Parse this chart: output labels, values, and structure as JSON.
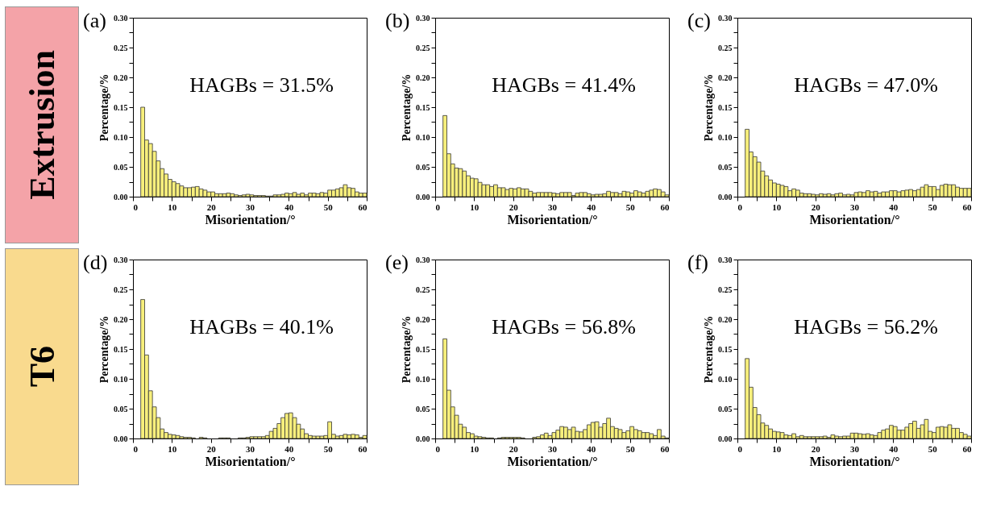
{
  "chart_data": [
    {
      "type": "other",
      "title": "Extrusion",
      "color": "#f4a3a8"
    },
    {
      "type": "histogram",
      "title": "(a)",
      "xlabel": "Misorientation/°",
      "ylabel": "Percentage/%",
      "annotations": [
        "HAGBs = 31.5%"
      ],
      "color": "#f7ef7c",
      "bins": [
        2,
        3,
        4,
        5,
        6,
        7,
        8,
        9,
        10,
        11,
        12,
        13,
        14,
        15,
        16,
        17,
        18,
        19,
        20,
        21,
        22,
        23,
        24,
        25,
        26,
        27,
        28,
        29,
        30,
        31,
        32,
        33,
        34,
        35,
        36,
        37,
        38,
        39,
        40,
        41,
        42,
        43,
        44,
        45,
        46,
        47,
        48,
        49,
        50,
        51,
        52,
        53,
        54,
        55,
        56,
        57,
        58,
        59,
        60
      ],
      "values": [
        0.15,
        0.095,
        0.089,
        0.076,
        0.06,
        0.047,
        0.038,
        0.029,
        0.025,
        0.022,
        0.018,
        0.015,
        0.015,
        0.016,
        0.017,
        0.013,
        0.011,
        0.008,
        0.008,
        0.005,
        0.005,
        0.005,
        0.006,
        0.005,
        0.003,
        0.002,
        0.003,
        0.004,
        0.003,
        0.002,
        0.002,
        0.002,
        0.001,
        0.001,
        0.003,
        0.003,
        0.004,
        0.006,
        0.005,
        0.007,
        0.004,
        0.006,
        0.003,
        0.006,
        0.006,
        0.005,
        0.007,
        0.006,
        0.011,
        0.011,
        0.013,
        0.015,
        0.02,
        0.015,
        0.014,
        0.008,
        0.006,
        0.006
      ],
      "xlim": [
        0,
        60
      ],
      "xticks": [
        0,
        {
          "value": 5,
          "label": null
        },
        10,
        {
          "value": 15,
          "label": null
        },
        20,
        {
          "value": 25,
          "label": null
        },
        30,
        {
          "value": 35,
          "label": null
        },
        40,
        {
          "value": 45,
          "label": null
        },
        50,
        {
          "value": 55,
          "label": null
        },
        60
      ],
      "ylim": [
        0,
        0.3
      ],
      "yticks": [
        {
          "value": 0,
          "label": "0.00"
        },
        {
          "value": 0.025,
          "label": null
        },
        {
          "value": 0.05,
          "label": "0.05"
        },
        {
          "value": 0.075,
          "label": null
        },
        {
          "value": 0.1,
          "label": "0.10"
        },
        {
          "value": 0.125,
          "label": null
        },
        {
          "value": 0.15,
          "label": "0.15"
        },
        {
          "value": 0.175,
          "label": null
        },
        {
          "value": 0.2,
          "label": "0.20"
        },
        {
          "value": 0.225,
          "label": null
        },
        {
          "value": 0.25,
          "label": "0.25"
        },
        {
          "value": 0.275,
          "label": null
        },
        {
          "value": 0.3,
          "label": "0.30"
        }
      ]
    },
    {
      "type": "histogram",
      "title": "(b)",
      "xlabel": "Misorientation/°",
      "ylabel": "Percentage/%",
      "annotations": [
        "HAGBs = 41.4%"
      ],
      "color": "#f7ef7c",
      "bins": [
        2,
        3,
        4,
        5,
        6,
        7,
        8,
        9,
        10,
        11,
        12,
        13,
        14,
        15,
        16,
        17,
        18,
        19,
        20,
        21,
        22,
        23,
        24,
        25,
        26,
        27,
        28,
        29,
        30,
        31,
        32,
        33,
        34,
        35,
        36,
        37,
        38,
        39,
        40,
        41,
        42,
        43,
        44,
        45,
        46,
        47,
        48,
        49,
        50,
        51,
        52,
        53,
        54,
        55,
        56,
        57,
        58,
        59,
        60
      ],
      "values": [
        0.136,
        0.072,
        0.055,
        0.048,
        0.047,
        0.043,
        0.035,
        0.031,
        0.03,
        0.024,
        0.02,
        0.02,
        0.017,
        0.02,
        0.015,
        0.015,
        0.012,
        0.014,
        0.013,
        0.015,
        0.013,
        0.013,
        0.009,
        0.006,
        0.007,
        0.007,
        0.007,
        0.007,
        0.006,
        0.005,
        0.007,
        0.007,
        0.007,
        0.002,
        0.006,
        0.007,
        0.007,
        0.005,
        0.003,
        0.004,
        0.004,
        0.005,
        0.009,
        0.007,
        0.007,
        0.005,
        0.009,
        0.008,
        0.006,
        0.01,
        0.008,
        0.006,
        0.009,
        0.011,
        0.013,
        0.012,
        0.008,
        0.003
      ],
      "xlim": [
        0,
        60
      ],
      "xticks": [
        0,
        {
          "value": 5,
          "label": null
        },
        10,
        {
          "value": 15,
          "label": null
        },
        20,
        {
          "value": 25,
          "label": null
        },
        30,
        {
          "value": 35,
          "label": null
        },
        40,
        {
          "value": 45,
          "label": null
        },
        50,
        {
          "value": 55,
          "label": null
        },
        60
      ],
      "ylim": [
        0,
        0.3
      ],
      "yticks": [
        {
          "value": 0,
          "label": "0.00"
        },
        {
          "value": 0.025,
          "label": null
        },
        {
          "value": 0.05,
          "label": "0.05"
        },
        {
          "value": 0.075,
          "label": null
        },
        {
          "value": 0.1,
          "label": "0.10"
        },
        {
          "value": 0.125,
          "label": null
        },
        {
          "value": 0.15,
          "label": "0.15"
        },
        {
          "value": 0.175,
          "label": null
        },
        {
          "value": 0.2,
          "label": "0.20"
        },
        {
          "value": 0.225,
          "label": null
        },
        {
          "value": 0.25,
          "label": "0.25"
        },
        {
          "value": 0.275,
          "label": null
        },
        {
          "value": 0.3,
          "label": "0.30"
        }
      ]
    },
    {
      "type": "histogram",
      "title": "(c)",
      "xlabel": "Misorientation/°",
      "ylabel": "Percentage/%",
      "annotations": [
        "HAGBs = 47.0%"
      ],
      "color": "#f7ef7c",
      "bins": [
        2,
        3,
        4,
        5,
        6,
        7,
        8,
        9,
        10,
        11,
        12,
        13,
        14,
        15,
        16,
        17,
        18,
        19,
        20,
        21,
        22,
        23,
        24,
        25,
        26,
        27,
        28,
        29,
        30,
        31,
        32,
        33,
        34,
        35,
        36,
        37,
        38,
        39,
        40,
        41,
        42,
        43,
        44,
        45,
        46,
        47,
        48,
        49,
        50,
        51,
        52,
        53,
        54,
        55,
        56,
        57,
        58,
        59,
        60
      ],
      "values": [
        0.113,
        0.075,
        0.067,
        0.058,
        0.043,
        0.035,
        0.028,
        0.023,
        0.021,
        0.019,
        0.017,
        0.01,
        0.013,
        0.011,
        0.006,
        0.005,
        0.005,
        0.004,
        0.003,
        0.005,
        0.004,
        0.005,
        0.003,
        0.005,
        0.006,
        0.003,
        0.004,
        0.003,
        0.007,
        0.008,
        0.007,
        0.01,
        0.008,
        0.009,
        0.006,
        0.008,
        0.008,
        0.01,
        0.01,
        0.008,
        0.01,
        0.011,
        0.012,
        0.01,
        0.012,
        0.016,
        0.02,
        0.017,
        0.017,
        0.012,
        0.019,
        0.021,
        0.02,
        0.02,
        0.016,
        0.014,
        0.014,
        0.014
      ],
      "xlim": [
        0,
        60
      ],
      "xticks": [
        0,
        {
          "value": 5,
          "label": null
        },
        10,
        {
          "value": 15,
          "label": null
        },
        20,
        {
          "value": 25,
          "label": null
        },
        30,
        {
          "value": 35,
          "label": null
        },
        40,
        {
          "value": 45,
          "label": null
        },
        50,
        {
          "value": 55,
          "label": null
        },
        60
      ],
      "ylim": [
        0,
        0.3
      ],
      "yticks": [
        {
          "value": 0,
          "label": "0.00"
        },
        {
          "value": 0.025,
          "label": null
        },
        {
          "value": 0.05,
          "label": "0.05"
        },
        {
          "value": 0.075,
          "label": null
        },
        {
          "value": 0.1,
          "label": "0.10"
        },
        {
          "value": 0.125,
          "label": null
        },
        {
          "value": 0.15,
          "label": "0.15"
        },
        {
          "value": 0.175,
          "label": null
        },
        {
          "value": 0.2,
          "label": "0.20"
        },
        {
          "value": 0.225,
          "label": null
        },
        {
          "value": 0.25,
          "label": "0.25"
        },
        {
          "value": 0.275,
          "label": null
        },
        {
          "value": 0.3,
          "label": "0.30"
        }
      ]
    },
    {
      "type": "other",
      "title": "T6",
      "color": "#f9da8e"
    },
    {
      "type": "histogram",
      "title": "(d)",
      "xlabel": "Misorientation/°",
      "ylabel": "Percentage/%",
      "annotations": [
        "HAGBs = 40.1%"
      ],
      "color": "#f7ef7c",
      "bins": [
        2,
        3,
        4,
        5,
        6,
        7,
        8,
        9,
        10,
        11,
        12,
        13,
        14,
        15,
        16,
        17,
        18,
        19,
        20,
        21,
        22,
        23,
        24,
        25,
        26,
        27,
        28,
        29,
        30,
        31,
        32,
        33,
        34,
        35,
        36,
        37,
        38,
        39,
        40,
        41,
        42,
        43,
        44,
        45,
        46,
        47,
        48,
        49,
        50,
        51,
        52,
        53,
        54,
        55,
        56,
        57,
        58,
        59,
        60
      ],
      "values": [
        0.233,
        0.14,
        0.08,
        0.053,
        0.035,
        0.016,
        0.01,
        0.007,
        0.006,
        0.005,
        0.003,
        0.002,
        0.002,
        0.001,
        0.0,
        0.002,
        0.001,
        0.0,
        0.0,
        0.0,
        0.001,
        0.001,
        0.001,
        0.0,
        0.0,
        0.001,
        0.001,
        0.002,
        0.003,
        0.003,
        0.003,
        0.003,
        0.005,
        0.012,
        0.017,
        0.025,
        0.035,
        0.042,
        0.043,
        0.035,
        0.024,
        0.016,
        0.008,
        0.005,
        0.004,
        0.004,
        0.004,
        0.005,
        0.028,
        0.007,
        0.004,
        0.005,
        0.007,
        0.006,
        0.007,
        0.006,
        0.002,
        0.005
      ],
      "xlim": [
        0,
        60
      ],
      "xticks": [
        0,
        {
          "value": 5,
          "label": null
        },
        10,
        {
          "value": 15,
          "label": null
        },
        20,
        {
          "value": 25,
          "label": null
        },
        30,
        {
          "value": 35,
          "label": null
        },
        40,
        {
          "value": 45,
          "label": null
        },
        50,
        {
          "value": 55,
          "label": null
        },
        60
      ],
      "ylim": [
        0,
        0.3
      ],
      "yticks": [
        {
          "value": 0,
          "label": "0.00"
        },
        {
          "value": 0.025,
          "label": null
        },
        {
          "value": 0.05,
          "label": "0.05"
        },
        {
          "value": 0.075,
          "label": null
        },
        {
          "value": 0.1,
          "label": "0.10"
        },
        {
          "value": 0.125,
          "label": null
        },
        {
          "value": 0.15,
          "label": "0.15"
        },
        {
          "value": 0.175,
          "label": null
        },
        {
          "value": 0.2,
          "label": "0.20"
        },
        {
          "value": 0.225,
          "label": null
        },
        {
          "value": 0.25,
          "label": "0.25"
        },
        {
          "value": 0.275,
          "label": null
        },
        {
          "value": 0.3,
          "label": "0.30"
        }
      ]
    },
    {
      "type": "histogram",
      "title": "(e)",
      "xlabel": "Misorientation/°",
      "ylabel": "Percentage/%",
      "annotations": [
        "HAGBs = 56.8%"
      ],
      "color": "#f7ef7c",
      "bins": [
        2,
        3,
        4,
        5,
        6,
        7,
        8,
        9,
        10,
        11,
        12,
        13,
        14,
        15,
        16,
        17,
        18,
        19,
        20,
        21,
        22,
        23,
        24,
        25,
        26,
        27,
        28,
        29,
        30,
        31,
        32,
        33,
        34,
        35,
        36,
        37,
        38,
        39,
        40,
        41,
        42,
        43,
        44,
        45,
        46,
        47,
        48,
        49,
        50,
        51,
        52,
        53,
        54,
        55,
        56,
        57,
        58,
        59,
        60
      ],
      "values": [
        0.167,
        0.081,
        0.053,
        0.039,
        0.024,
        0.019,
        0.01,
        0.008,
        0.004,
        0.003,
        0.002,
        0.001,
        0.001,
        0.0,
        0.001,
        0.002,
        0.002,
        0.002,
        0.002,
        0.002,
        0.001,
        0.0,
        0.0,
        0.002,
        0.003,
        0.006,
        0.009,
        0.005,
        0.01,
        0.014,
        0.02,
        0.019,
        0.015,
        0.019,
        0.012,
        0.011,
        0.015,
        0.023,
        0.027,
        0.028,
        0.019,
        0.025,
        0.034,
        0.02,
        0.017,
        0.015,
        0.01,
        0.013,
        0.02,
        0.015,
        0.013,
        0.01,
        0.01,
        0.008,
        0.005,
        0.015,
        0.004,
        0.001
      ],
      "xlim": [
        0,
        60
      ],
      "xticks": [
        0,
        {
          "value": 5,
          "label": null
        },
        10,
        {
          "value": 15,
          "label": null
        },
        20,
        {
          "value": 25,
          "label": null
        },
        30,
        {
          "value": 35,
          "label": null
        },
        40,
        {
          "value": 45,
          "label": null
        },
        50,
        {
          "value": 55,
          "label": null
        },
        60
      ],
      "ylim": [
        0,
        0.3
      ],
      "yticks": [
        {
          "value": 0,
          "label": "0.00"
        },
        {
          "value": 0.025,
          "label": null
        },
        {
          "value": 0.05,
          "label": "0.05"
        },
        {
          "value": 0.075,
          "label": null
        },
        {
          "value": 0.1,
          "label": "0.10"
        },
        {
          "value": 0.125,
          "label": null
        },
        {
          "value": 0.15,
          "label": "0.15"
        },
        {
          "value": 0.175,
          "label": null
        },
        {
          "value": 0.2,
          "label": "0.20"
        },
        {
          "value": 0.225,
          "label": null
        },
        {
          "value": 0.25,
          "label": "0.25"
        },
        {
          "value": 0.275,
          "label": null
        },
        {
          "value": 0.3,
          "label": "0.30"
        }
      ]
    },
    {
      "type": "histogram",
      "title": "(f)",
      "xlabel": "Misorientation/°",
      "ylabel": "Percentage/%",
      "annotations": [
        "HAGBs = 56.2%"
      ],
      "color": "#f7ef7c",
      "bins": [
        2,
        3,
        4,
        5,
        6,
        7,
        8,
        9,
        10,
        11,
        12,
        13,
        14,
        15,
        16,
        17,
        18,
        19,
        20,
        21,
        22,
        23,
        24,
        25,
        26,
        27,
        28,
        29,
        30,
        31,
        32,
        33,
        34,
        35,
        36,
        37,
        38,
        39,
        40,
        41,
        42,
        43,
        44,
        45,
        46,
        47,
        48,
        49,
        50,
        51,
        52,
        53,
        54,
        55,
        56,
        57,
        58,
        59,
        60
      ],
      "values": [
        0.134,
        0.086,
        0.052,
        0.04,
        0.026,
        0.022,
        0.016,
        0.012,
        0.011,
        0.01,
        0.006,
        0.005,
        0.008,
        0.003,
        0.005,
        0.003,
        0.003,
        0.003,
        0.003,
        0.003,
        0.004,
        0.002,
        0.006,
        0.004,
        0.003,
        0.004,
        0.004,
        0.009,
        0.009,
        0.008,
        0.007,
        0.008,
        0.006,
        0.005,
        0.01,
        0.014,
        0.016,
        0.022,
        0.02,
        0.014,
        0.014,
        0.019,
        0.025,
        0.029,
        0.017,
        0.023,
        0.032,
        0.012,
        0.01,
        0.019,
        0.02,
        0.019,
        0.023,
        0.017,
        0.017,
        0.01,
        0.007,
        0.004
      ],
      "xlim": [
        0,
        60
      ],
      "xticks": [
        0,
        {
          "value": 5,
          "label": null
        },
        10,
        {
          "value": 15,
          "label": null
        },
        20,
        {
          "value": 25,
          "label": null
        },
        30,
        {
          "value": 35,
          "label": null
        },
        40,
        {
          "value": 45,
          "label": null
        },
        50,
        {
          "value": 55,
          "label": null
        },
        60
      ],
      "ylim": [
        0,
        0.3
      ],
      "yticks": [
        {
          "value": 0,
          "label": "0.00"
        },
        {
          "value": 0.025,
          "label": null
        },
        {
          "value": 0.05,
          "label": "0.05"
        },
        {
          "value": 0.075,
          "label": null
        },
        {
          "value": 0.1,
          "label": "0.10"
        },
        {
          "value": 0.125,
          "label": null
        },
        {
          "value": 0.15,
          "label": "0.15"
        },
        {
          "value": 0.175,
          "label": null
        },
        {
          "value": 0.2,
          "label": "0.20"
        },
        {
          "value": 0.225,
          "label": null
        },
        {
          "value": 0.25,
          "label": "0.25"
        },
        {
          "value": 0.275,
          "label": null
        },
        {
          "value": 0.3,
          "label": "0.30"
        }
      ]
    }
  ]
}
